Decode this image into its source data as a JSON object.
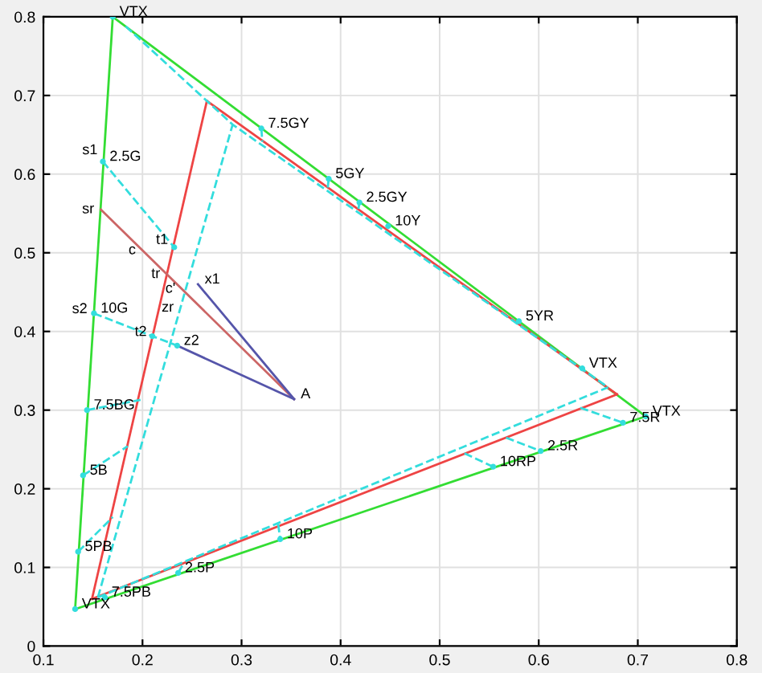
{
  "chart_data": {
    "type": "line",
    "xlim": [
      0.1,
      0.8
    ],
    "ylim": [
      0,
      0.8
    ],
    "xticks": [
      0.1,
      0.2,
      0.3,
      0.4,
      0.5,
      0.6,
      0.7,
      0.8
    ],
    "yticks": [
      0,
      0.1,
      0.2,
      0.3,
      0.4,
      0.5,
      0.6,
      0.7,
      0.8
    ],
    "grid": true,
    "series": [
      {
        "color": "#33dd33",
        "line_style": "solid",
        "x": [
          0.132,
          0.17
        ],
        "values": [
          0.047,
          0.8
        ]
      },
      {
        "color": "#33dd33",
        "line_style": "solid",
        "x": [
          0.17,
          0.708
        ],
        "values": [
          0.8,
          0.292
        ]
      },
      {
        "color": "#33dd33",
        "line_style": "solid",
        "x": [
          0.132,
          0.708
        ],
        "values": [
          0.047,
          0.292
        ]
      },
      {
        "color": "#ee4444",
        "line_style": "solid",
        "x": [
          0.149,
          0.265
        ],
        "values": [
          0.06,
          0.693
        ]
      },
      {
        "color": "#ee4444",
        "line_style": "solid",
        "x": [
          0.265,
          0.679
        ],
        "values": [
          0.693,
          0.32
        ]
      },
      {
        "color": "#ee4444",
        "line_style": "solid",
        "x": [
          0.149,
          0.679
        ],
        "values": [
          0.06,
          0.32
        ]
      },
      {
        "color": "#33dddd",
        "line_style": "dashed",
        "x": [
          0.183,
          0.291,
          0.67
        ],
        "values": [
          0.788,
          0.663,
          0.329
        ]
      },
      {
        "color": "#33dddd",
        "line_style": "dashed",
        "x": [
          0.155,
          0.67
        ],
        "values": [
          0.062,
          0.329
        ]
      },
      {
        "color": "#33dddd",
        "line_style": "dashed",
        "x": [
          0.155,
          0.291
        ],
        "values": [
          0.062,
          0.663
        ]
      },
      {
        "color": "#33dddd",
        "line_style": "dashed",
        "x": [
          0.16,
          0.232
        ],
        "values": [
          0.616,
          0.507
        ]
      },
      {
        "color": "#33dddd",
        "line_style": "dashed",
        "x": [
          0.151,
          0.21,
          0.235
        ],
        "values": [
          0.423,
          0.394,
          0.382
        ]
      },
      {
        "color": "#33dddd",
        "line_style": "dashed",
        "x": [
          0.144,
          0.198
        ],
        "values": [
          0.3,
          0.313
        ]
      },
      {
        "color": "#33dddd",
        "line_style": "dashed",
        "x": [
          0.14,
          0.185
        ],
        "values": [
          0.217,
          0.254
        ]
      },
      {
        "color": "#33dddd",
        "line_style": "dashed",
        "x": [
          0.135,
          0.17
        ],
        "values": [
          0.12,
          0.164
        ]
      },
      {
        "color": "#33dddd",
        "line_style": "dashed",
        "x": [
          0.236,
          0.241
        ],
        "values": [
          0.093,
          0.104
        ]
      },
      {
        "color": "#33dddd",
        "line_style": "dashed",
        "x": [
          0.337,
          0.339
        ],
        "values": [
          0.155,
          0.136
        ]
      },
      {
        "color": "#33dddd",
        "line_style": "dashed",
        "x": [
          0.525,
          0.554
        ],
        "values": [
          0.245,
          0.228
        ]
      },
      {
        "color": "#33dddd",
        "line_style": "dashed",
        "x": [
          0.567,
          0.602
        ],
        "values": [
          0.265,
          0.248
        ]
      },
      {
        "color": "#33dddd",
        "line_style": "dashed",
        "x": [
          0.642,
          0.685
        ],
        "values": [
          0.303,
          0.284
        ]
      },
      {
        "color": "#33dddd",
        "line_style": "dashed",
        "x": [
          0.32,
          0.321
        ],
        "values": [
          0.658,
          0.641
        ]
      },
      {
        "color": "#33dddd",
        "line_style": "dashed",
        "x": [
          0.387,
          0.388
        ],
        "values": [
          0.583,
          0.594
        ]
      },
      {
        "color": "#33dddd",
        "line_style": "dashed",
        "x": [
          0.418,
          0.419
        ],
        "values": [
          0.556,
          0.564
        ]
      },
      {
        "color": "#cc6666",
        "line_style": "solid",
        "x": [
          0.158,
          0.353
        ],
        "values": [
          0.555,
          0.314
        ]
      },
      {
        "color": "#5555aa",
        "line_style": "solid",
        "x": [
          0.256,
          0.353
        ],
        "values": [
          0.46,
          0.314
        ]
      },
      {
        "color": "#5555aa",
        "line_style": "solid",
        "x": [
          0.235,
          0.353
        ],
        "values": [
          0.382,
          0.314
        ]
      },
      {
        "type": "scatter",
        "color": "#33dddd",
        "marker": "circle",
        "x": [
          0.17,
          0.708,
          0.132,
          0.644,
          0.16,
          0.151,
          0.144,
          0.14,
          0.135,
          0.162,
          0.236,
          0.339,
          0.554,
          0.602,
          0.685,
          0.58,
          0.448,
          0.419,
          0.388,
          0.32,
          0.232,
          0.21,
          0.235
        ],
        "values": [
          0.8,
          0.292,
          0.047,
          0.353,
          0.616,
          0.423,
          0.3,
          0.217,
          0.12,
          0.062,
          0.093,
          0.136,
          0.228,
          0.248,
          0.284,
          0.413,
          0.534,
          0.564,
          0.594,
          0.658,
          0.507,
          0.394,
          0.382
        ]
      }
    ],
    "annotations": [
      {
        "text": "VTX",
        "x": 0.17,
        "y": 0.8
      },
      {
        "text": "VTX",
        "x": 0.708,
        "y": 0.292
      },
      {
        "text": "VTX",
        "x": 0.132,
        "y": 0.047
      },
      {
        "text": "VTX",
        "x": 0.644,
        "y": 0.353
      },
      {
        "text": "2.5G",
        "x": 0.16,
        "y": 0.616
      },
      {
        "text": "10G",
        "x": 0.151,
        "y": 0.423
      },
      {
        "text": "7.5BG",
        "x": 0.144,
        "y": 0.3
      },
      {
        "text": "5B",
        "x": 0.14,
        "y": 0.217
      },
      {
        "text": "5PB",
        "x": 0.135,
        "y": 0.12
      },
      {
        "text": "7.5PB",
        "x": 0.162,
        "y": 0.062
      },
      {
        "text": "2.5P",
        "x": 0.236,
        "y": 0.093
      },
      {
        "text": "10P",
        "x": 0.339,
        "y": 0.136
      },
      {
        "text": "10RP",
        "x": 0.554,
        "y": 0.228
      },
      {
        "text": "2.5R",
        "x": 0.602,
        "y": 0.248
      },
      {
        "text": "7.5R",
        "x": 0.685,
        "y": 0.284
      },
      {
        "text": "5YR",
        "x": 0.58,
        "y": 0.413
      },
      {
        "text": "10Y",
        "x": 0.448,
        "y": 0.534
      },
      {
        "text": "2.5GY",
        "x": 0.419,
        "y": 0.564
      },
      {
        "text": "5GY",
        "x": 0.388,
        "y": 0.594
      },
      {
        "text": "7.5GY",
        "x": 0.32,
        "y": 0.658
      },
      {
        "text": "s1",
        "x": 0.1614,
        "y": 0.63
      },
      {
        "text": "sr",
        "x": 0.158,
        "y": 0.555
      },
      {
        "text": "c",
        "x": 0.2,
        "y": 0.503
      },
      {
        "text": "t1",
        "x": 0.2326,
        "y": 0.516
      },
      {
        "text": "x1",
        "x": 0.256,
        "y": 0.46
      },
      {
        "text": "tr",
        "x": 0.2246,
        "y": 0.4727
      },
      {
        "text": "c'",
        "x": 0.24,
        "y": 0.454
      },
      {
        "text": "zr",
        "x": 0.2383,
        "y": 0.43
      },
      {
        "text": "s2",
        "x": 0.1511,
        "y": 0.428
      },
      {
        "text": "t2",
        "x": 0.2111,
        "y": 0.399
      },
      {
        "text": "z2",
        "x": 0.235,
        "y": 0.382
      },
      {
        "text": "A",
        "x": 0.353,
        "y": 0.314
      }
    ]
  }
}
